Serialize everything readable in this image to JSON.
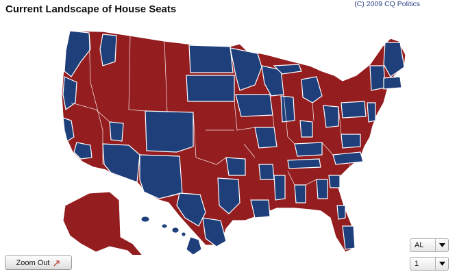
{
  "header": {
    "title": "Current Landscape of House Seats",
    "credit": "(C) 2009 CQ Politics"
  },
  "map": {
    "colors": {
      "democrat": "#1f3f7b",
      "republican": "#941d1f",
      "border": "#ffffff"
    },
    "icons": [
      "zoom-out-icon",
      "chevron-down-icon"
    ]
  },
  "controls": {
    "zoom_out_label": "Zoom Out",
    "state_select_value": "AL",
    "district_select_value": "1"
  }
}
